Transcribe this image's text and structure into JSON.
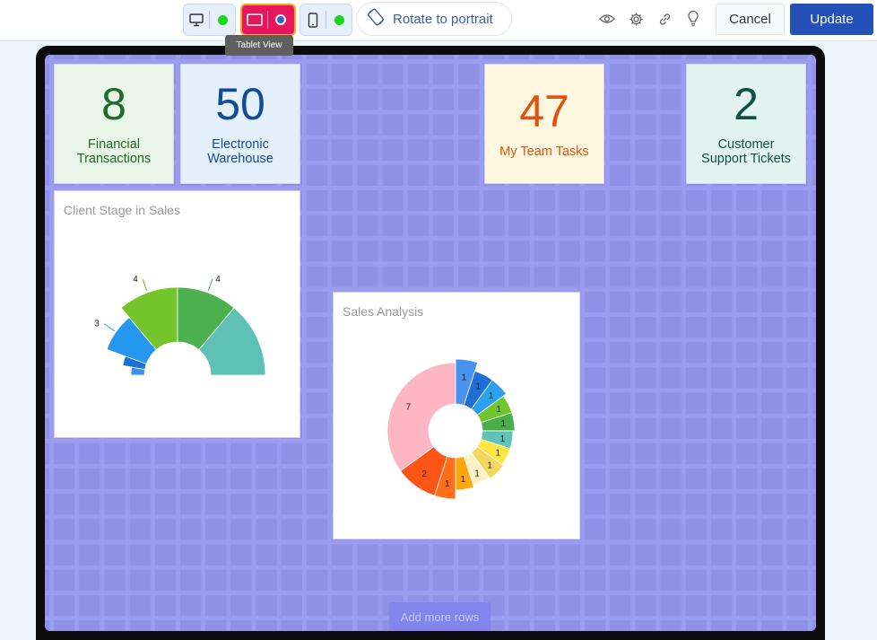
{
  "toolbar": {
    "device_buttons": [
      {
        "name": "desktop",
        "icon": "monitor-icon",
        "status_color": "#18d818"
      },
      {
        "name": "tablet",
        "icon": "tablet-landscape-icon",
        "status_color": "#3b5fd6",
        "active": true
      },
      {
        "name": "mobile",
        "icon": "phone-icon",
        "status_color": "#18d818"
      }
    ],
    "tooltip": "Tablet View",
    "rotate_label": "Rotate to portrait",
    "icons": [
      "eye-icon",
      "gear-icon",
      "link-icon",
      "lightbulb-icon"
    ],
    "cancel_label": "Cancel",
    "update_label": "Update"
  },
  "dashboard": {
    "kpis": [
      {
        "value": "8",
        "label_line1": "Financial",
        "label_line2": "Transactions",
        "bg": "#e9f6e7",
        "color": "#1f6b2a"
      },
      {
        "value": "50",
        "label_line1": "Electronic",
        "label_line2": "Warehouse",
        "bg": "#e4f1fd",
        "color": "#134b9c"
      },
      {
        "value": "47",
        "label_line1": "My Team Tasks",
        "label_line2": "",
        "bg": "#fff7df",
        "color": "#e0530e"
      },
      {
        "value": "2",
        "label_line1": "Customer",
        "label_line2": "Support Tickets",
        "bg": "#e2f3f1",
        "color": "#0c5247"
      }
    ],
    "add_rows_label": "Add more rows"
  },
  "chart_data": [
    {
      "type": "pie",
      "title": "Client Stage in Sales",
      "variant": "semi-donut",
      "slices": [
        {
          "value": 1,
          "color": "#3f8ff0",
          "label": ""
        },
        {
          "value": 1,
          "color": "#1e6fd6",
          "label": ""
        },
        {
          "value": 3,
          "color": "#2597ef",
          "label": "3"
        },
        {
          "value": 4,
          "color": "#73c52b",
          "label": "4"
        },
        {
          "value": 4,
          "color": "#4db04e",
          "label": "4"
        },
        {
          "value": 5,
          "color": "#5fc0b6",
          "label": ""
        }
      ]
    },
    {
      "type": "pie",
      "title": "Sales Analysis",
      "variant": "donut",
      "slices": [
        {
          "value": 1,
          "color": "#4a92f0",
          "label": "1"
        },
        {
          "value": 1,
          "color": "#1e6fd6",
          "label": "1"
        },
        {
          "value": 1,
          "color": "#2aa0ee",
          "label": "1"
        },
        {
          "value": 1,
          "color": "#6fc52b",
          "label": "1"
        },
        {
          "value": 1,
          "color": "#4aae4c",
          "label": "1"
        },
        {
          "value": 1,
          "color": "#5fc2b6",
          "label": "1"
        },
        {
          "value": 1,
          "color": "#ffe740",
          "label": "1"
        },
        {
          "value": 1,
          "color": "#f2d860",
          "label": "1"
        },
        {
          "value": 1,
          "color": "#fff3c6",
          "label": "1"
        },
        {
          "value": 1,
          "color": "#ffa60a",
          "label": "1"
        },
        {
          "value": 1,
          "color": "#ff6f1a",
          "label": "1"
        },
        {
          "value": 2,
          "color": "#ff5516",
          "label": "2"
        },
        {
          "value": 7,
          "color": "#ffb6c3",
          "label": "7"
        }
      ]
    }
  ]
}
